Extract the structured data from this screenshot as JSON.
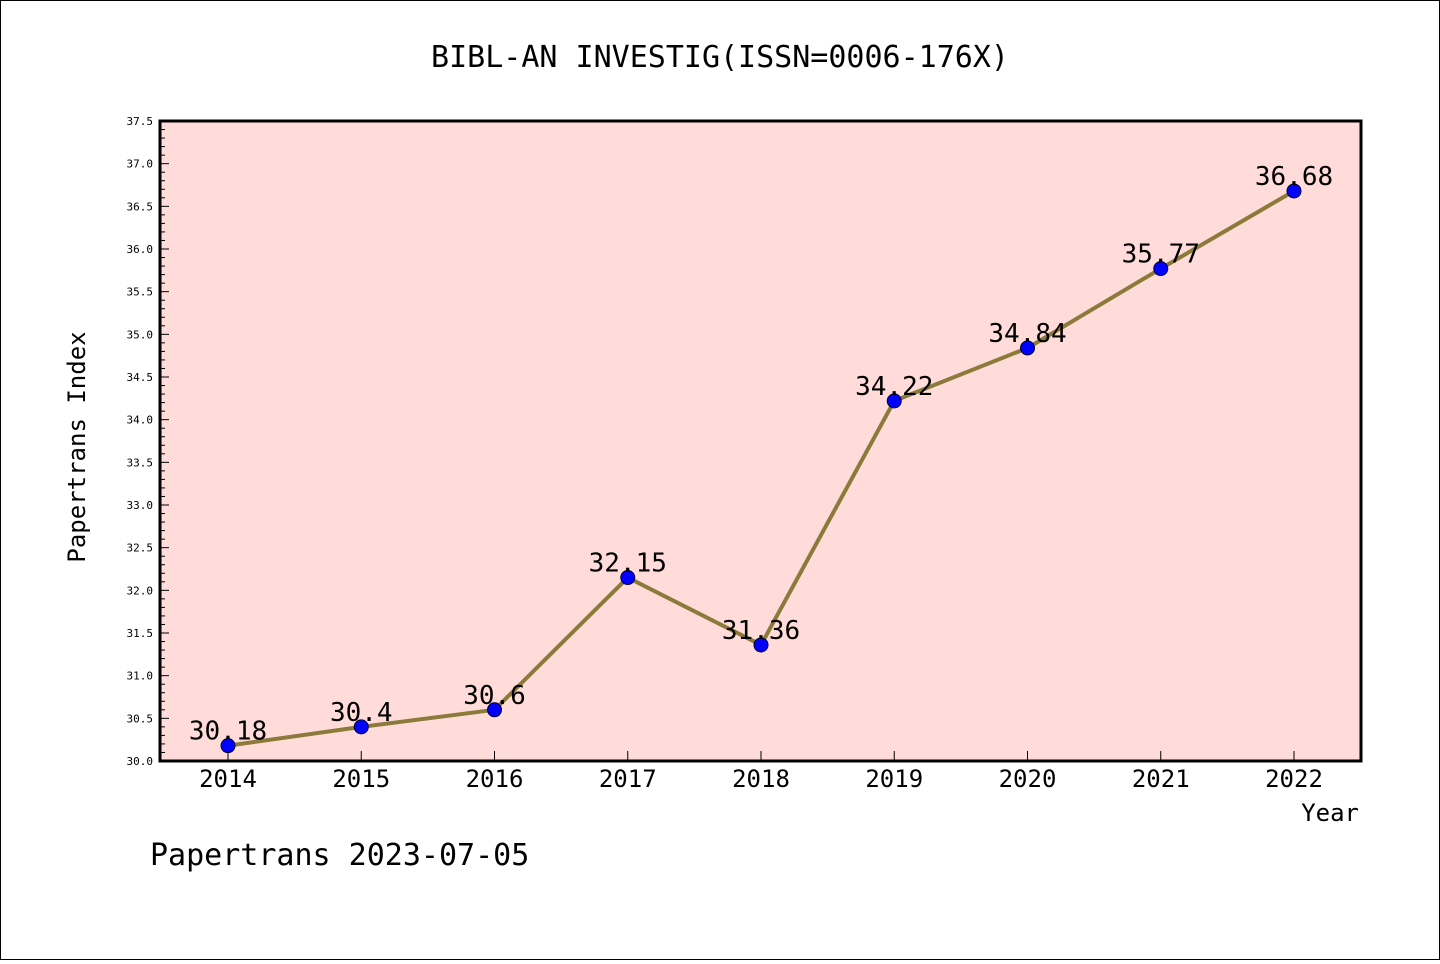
{
  "chart_data": {
    "type": "line",
    "title": "BIBL-AN INVESTIG(ISSN=0006-176X)",
    "xlabel": "Year",
    "ylabel": "Papertrans Index",
    "categories": [
      "2014",
      "2015",
      "2016",
      "2017",
      "2018",
      "2019",
      "2020",
      "2021",
      "2022"
    ],
    "values": [
      30.18,
      30.4,
      30.6,
      32.15,
      31.36,
      34.22,
      34.84,
      35.77,
      36.68
    ],
    "data_labels": [
      "30.18",
      "30.4",
      "30.6",
      "32.15",
      "31.36",
      "34.22",
      "34.84",
      "35.77",
      "36.68"
    ],
    "ylim": [
      30.0,
      37.5
    ],
    "yticks": [
      "30.0",
      "30.5",
      "31.0",
      "31.5",
      "32.0",
      "32.5",
      "33.0",
      "33.5",
      "34.0",
      "34.5",
      "35.0",
      "35.5",
      "36.0",
      "36.5",
      "37.0",
      "37.5"
    ],
    "grid": false,
    "colors": {
      "plot_background": "#FFDCDA",
      "line": "#8C7A3A",
      "marker": "#0000FF"
    },
    "footer": "Papertrans 2023-07-05"
  }
}
